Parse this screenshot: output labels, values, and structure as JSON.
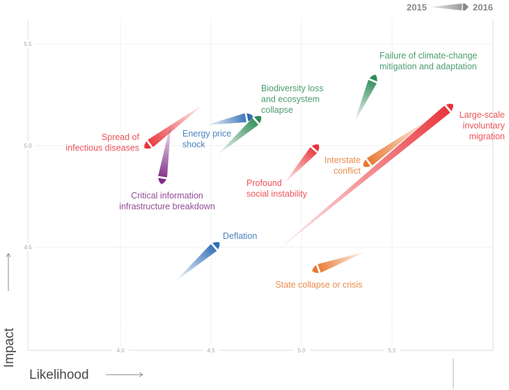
{
  "chart_data": {
    "type": "scatter",
    "title": "",
    "xlabel": "Likelihood",
    "ylabel": "Impact",
    "xlim": [
      3.5,
      6.05
    ],
    "ylim": [
      3.95,
      5.6
    ],
    "x_ticks": [
      "4.0",
      "4.5",
      "5.0",
      "5.5"
    ],
    "y_ticks": [
      "4.5",
      "5.0",
      "5.5"
    ],
    "grid": true,
    "legend": {
      "placement": "top-right",
      "from_label": "2015",
      "to_label": "2016"
    },
    "series": [
      {
        "name": "Spread of infectious diseases",
        "label_lines": [
          "Spread of",
          "infectious diseases"
        ],
        "color": "#e8343a",
        "label_anchor": "end",
        "x2015": 4.47,
        "y2015": 5.21,
        "x2016": 4.15,
        "y2016": 5.0
      },
      {
        "name": "Critical information infrastructure breakdown",
        "label_lines": [
          "Critical information",
          "infrastructure breakdown"
        ],
        "color": "#7f2a86",
        "label_anchor": "middle",
        "x2015": 4.28,
        "y2015": 5.12,
        "x2016": 4.23,
        "y2016": 4.83
      },
      {
        "name": "Energy price shock",
        "label_lines": [
          "Energy price",
          "shock"
        ],
        "color": "#2f6db5",
        "label_anchor": "start",
        "x2015": 4.47,
        "y2015": 5.1,
        "x2016": 4.71,
        "y2016": 5.14
      },
      {
        "name": "Biodiversity loss and ecosystem collapse",
        "label_lines": [
          "Biodiversity loss",
          "and ecosystem",
          "collapse"
        ],
        "color": "#2e8b57",
        "label_anchor": "start",
        "x2015": 4.53,
        "y2015": 4.95,
        "x2016": 4.76,
        "y2016": 5.13
      },
      {
        "name": "Failure of climate-change mitigation and adaptation",
        "label_lines": [
          "Failure of climate-change",
          "mitigation and adaptation"
        ],
        "color": "#2e8b57",
        "label_anchor": "start",
        "x2015": 5.29,
        "y2015": 5.11,
        "x2016": 5.4,
        "y2016": 5.33
      },
      {
        "name": "Large-scale involuntary migration",
        "label_lines": [
          "Large-scale",
          "involuntary",
          "migration"
        ],
        "color": "#e8343a",
        "label_anchor": "end",
        "x2015": 4.82,
        "y2015": 4.45,
        "x2016": 5.82,
        "y2016": 5.19
      },
      {
        "name": "Interstate conflict",
        "label_lines": [
          "Interstate",
          "conflict"
        ],
        "color": "#e8772e",
        "label_anchor": "end",
        "x2015": 5.72,
        "y2015": 5.14,
        "x2016": 5.36,
        "y2016": 4.91
      },
      {
        "name": "Profound social instability",
        "label_lines": [
          "Profound",
          "social instability"
        ],
        "color": "#e8343a",
        "label_anchor": "start",
        "x2015": 4.9,
        "y2015": 4.81,
        "x2016": 5.08,
        "y2016": 4.99
      },
      {
        "name": "Deflation",
        "label_lines": [
          "Deflation"
        ],
        "color": "#2f6db5",
        "label_anchor": "start",
        "x2015": 4.3,
        "y2015": 4.33,
        "x2016": 4.53,
        "y2016": 4.51
      },
      {
        "name": "State collapse or crisis",
        "label_lines": [
          "State collapse or crisis"
        ],
        "color": "#e8772e",
        "label_anchor": "middle",
        "x2015": 5.36,
        "y2015": 4.48,
        "x2016": 5.08,
        "y2016": 4.39
      }
    ]
  }
}
